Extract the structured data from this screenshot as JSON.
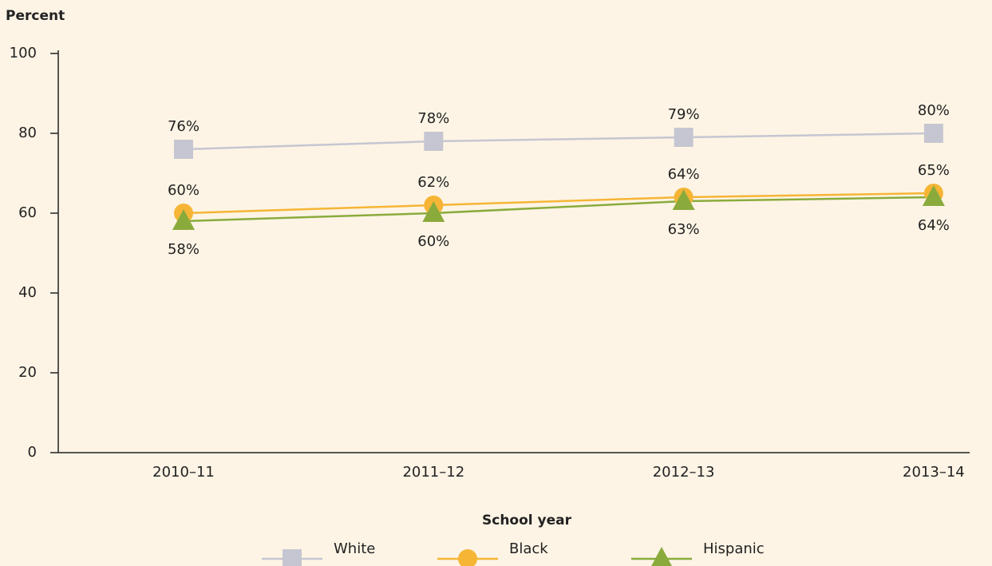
{
  "chart_data": {
    "type": "line",
    "ylabel": "Percent",
    "xlabel": "School year",
    "categories": [
      "2010–11",
      "2011–12",
      "2012–13",
      "2013–14"
    ],
    "series": [
      {
        "name": "White",
        "color": "#c5c6d1",
        "marker": "square",
        "label_position": "above",
        "values": [
          76,
          78,
          79,
          80
        ],
        "value_labels": [
          "76%",
          "78%",
          "79%",
          "80%"
        ]
      },
      {
        "name": "Black",
        "color": "#f6b535",
        "marker": "circle",
        "label_position": "above",
        "values": [
          60,
          62,
          64,
          65
        ],
        "value_labels": [
          "60%",
          "62%",
          "64%",
          "65%"
        ]
      },
      {
        "name": "Hispanic",
        "color": "#8aab3c",
        "marker": "triangle",
        "label_position": "below",
        "values": [
          58,
          60,
          63,
          64
        ],
        "value_labels": [
          "58%",
          "60%",
          "63%",
          "64%"
        ]
      }
    ],
    "ylim": [
      0,
      100
    ],
    "yticks": [
      0,
      20,
      40,
      60,
      80,
      100
    ],
    "grid": false,
    "legend": "bottom"
  }
}
